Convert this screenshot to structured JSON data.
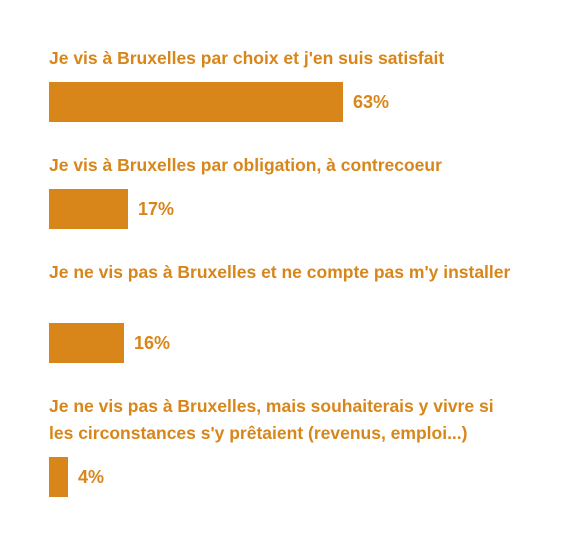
{
  "chart_data": {
    "type": "bar",
    "orientation": "horizontal",
    "categories": [
      "Je vis à Bruxelles par choix et j'en suis satisfait",
      "Je vis à Bruxelles par obligation, à contrecoeur",
      "Je ne vis pas à Bruxelles et ne compte pas m'y installer",
      "Je ne vis pas à Bruxelles, mais souhaiterais y vivre si les circonstances s'y prêtaient (revenus, emploi...)"
    ],
    "values": [
      63,
      17,
      16,
      4
    ],
    "value_labels": [
      "63%",
      "17%",
      "16%",
      "4%"
    ],
    "unit": "%",
    "xlim": [
      0,
      100
    ],
    "grid": false,
    "legend": "none",
    "bar_color": "#D8861A",
    "text_color": "#D8861A"
  }
}
